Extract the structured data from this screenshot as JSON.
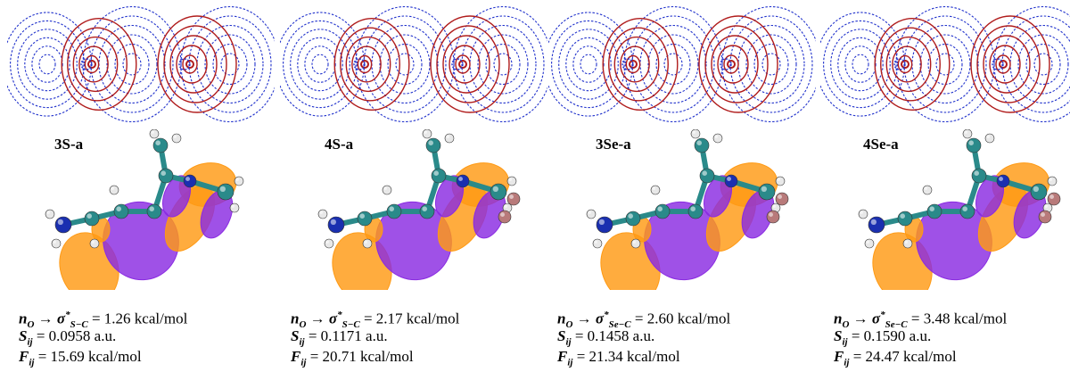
{
  "colors": {
    "contour_positive": "#b01c1c",
    "contour_negative": "#2233cc",
    "lobe_orange": "#ff9a14",
    "lobe_purple": "#8a2be2",
    "atom_carbon": "#2a8a8a",
    "atom_nitrogen": "#1a2fb0",
    "atom_hydrogen": "#e8e8e8",
    "atom_sulfur": "#e0c020",
    "atom_selenium": "#b87a7a",
    "atom_oxygen": "#cc2a2a"
  },
  "panels": [
    {
      "label": "3S-a",
      "acceptor_sub": "S−C",
      "energy": " = 1.26 kcal/mol",
      "s_value": " = 0.0958 a.u.",
      "f_value": " = 15.69 kcal/mol",
      "heavy_atom": "sulfur"
    },
    {
      "label": "4S-a",
      "acceptor_sub": "S−C",
      "energy": " = 2.17 kcal/mol",
      "s_value": " = 0.1171 a.u.",
      "f_value": " = 20.71 kcal/mol",
      "heavy_atom": "selenium"
    },
    {
      "label": "3Se-a",
      "acceptor_sub": "Se−C",
      "energy": " = 2.60 kcal/mol",
      "s_value": " = 0.1458 a.u.",
      "f_value": " = 21.34 kcal/mol",
      "heavy_atom": "selenium"
    },
    {
      "label": "4Se-a",
      "acceptor_sub": "Se−C",
      "energy": " = 3.48 kcal/mol",
      "s_value": " = 0.1590 a.u.",
      "f_value": " = 24.47 kcal/mol",
      "heavy_atom": "selenium"
    }
  ],
  "symbols": {
    "n": "n",
    "n_sub": "O",
    "arrow": " → ",
    "sigma": "σ",
    "star": "*",
    "S": "S",
    "F": "F",
    "ij": "ij"
  }
}
